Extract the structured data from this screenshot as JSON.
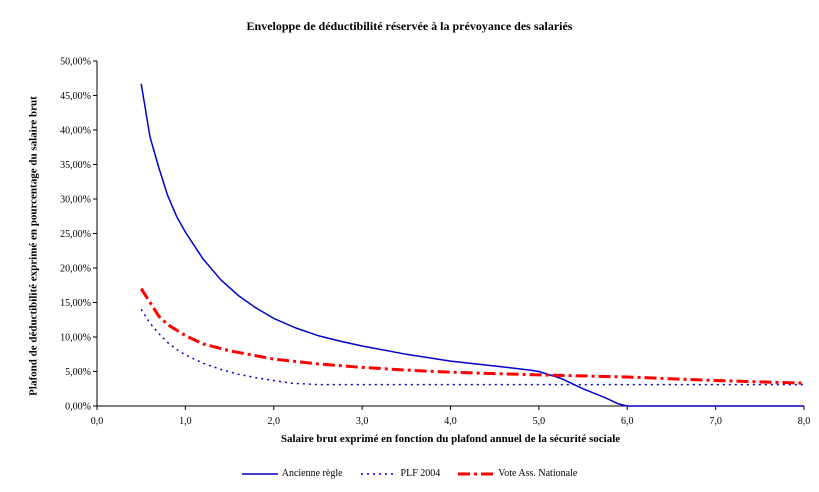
{
  "chart_data": {
    "type": "line",
    "title": "Enveloppe de déductibilité réservée à la prévoyance des salariés",
    "xlabel": "Salaire brut exprimé en fonction du plafond annuel de la sécurité sociale",
    "ylabel": "Plafond de déductibilité exprimé en pourcentage du salaire brut",
    "xlim": [
      0,
      8
    ],
    "ylim": [
      0,
      0.5
    ],
    "x_ticks": [
      "0,0",
      "1,0",
      "2,0",
      "3,0",
      "4,0",
      "5,0",
      "6,0",
      "7,0",
      "8,0"
    ],
    "y_ticks": [
      "0,00%",
      "5,00%",
      "10,00%",
      "15,00%",
      "20,00%",
      "25,00%",
      "30,00%",
      "35,00%",
      "40,00%",
      "45,00%",
      "50,00%"
    ],
    "grid": false,
    "legend_position": "bottom",
    "series": [
      {
        "name": "Ancienne règle",
        "color": "#0000cc",
        "style": "solid",
        "points": [
          [
            0.5,
            0.467
          ],
          [
            0.6,
            0.39
          ],
          [
            0.7,
            0.345
          ],
          [
            0.8,
            0.305
          ],
          [
            0.9,
            0.275
          ],
          [
            1.0,
            0.252
          ],
          [
            1.2,
            0.213
          ],
          [
            1.4,
            0.183
          ],
          [
            1.6,
            0.16
          ],
          [
            1.8,
            0.142
          ],
          [
            2.0,
            0.127
          ],
          [
            2.25,
            0.113
          ],
          [
            2.5,
            0.102
          ],
          [
            2.75,
            0.094
          ],
          [
            3.0,
            0.087
          ],
          [
            3.5,
            0.075
          ],
          [
            4.0,
            0.065
          ],
          [
            4.5,
            0.058
          ],
          [
            4.9,
            0.052
          ],
          [
            5.0,
            0.05
          ],
          [
            5.25,
            0.04
          ],
          [
            5.5,
            0.025
          ],
          [
            5.75,
            0.012
          ],
          [
            5.9,
            0.003
          ],
          [
            6.0,
            0.0
          ],
          [
            7.0,
            0.0
          ],
          [
            8.0,
            0.0
          ]
        ]
      },
      {
        "name": "PLF 2004",
        "color": "#0000cc",
        "style": "dotted",
        "points": [
          [
            0.5,
            0.14
          ],
          [
            0.6,
            0.12
          ],
          [
            0.7,
            0.105
          ],
          [
            0.8,
            0.092
          ],
          [
            0.9,
            0.082
          ],
          [
            1.0,
            0.074
          ],
          [
            1.2,
            0.062
          ],
          [
            1.4,
            0.053
          ],
          [
            1.6,
            0.046
          ],
          [
            1.8,
            0.041
          ],
          [
            2.0,
            0.037
          ],
          [
            2.2,
            0.033
          ],
          [
            2.5,
            0.031
          ],
          [
            8.0,
            0.031
          ]
        ]
      },
      {
        "name": "Vote Ass. Nationale",
        "color": "#ff0000",
        "style": "dashdot",
        "points": [
          [
            0.5,
            0.17
          ],
          [
            0.6,
            0.15
          ],
          [
            0.7,
            0.13
          ],
          [
            0.8,
            0.118
          ],
          [
            1.0,
            0.102
          ],
          [
            1.2,
            0.09
          ],
          [
            1.5,
            0.08
          ],
          [
            2.0,
            0.068
          ],
          [
            2.5,
            0.061
          ],
          [
            3.0,
            0.056
          ],
          [
            3.5,
            0.052
          ],
          [
            4.0,
            0.049
          ],
          [
            5.0,
            0.045
          ],
          [
            6.0,
            0.042
          ],
          [
            7.0,
            0.037
          ],
          [
            8.0,
            0.033
          ]
        ]
      }
    ]
  }
}
